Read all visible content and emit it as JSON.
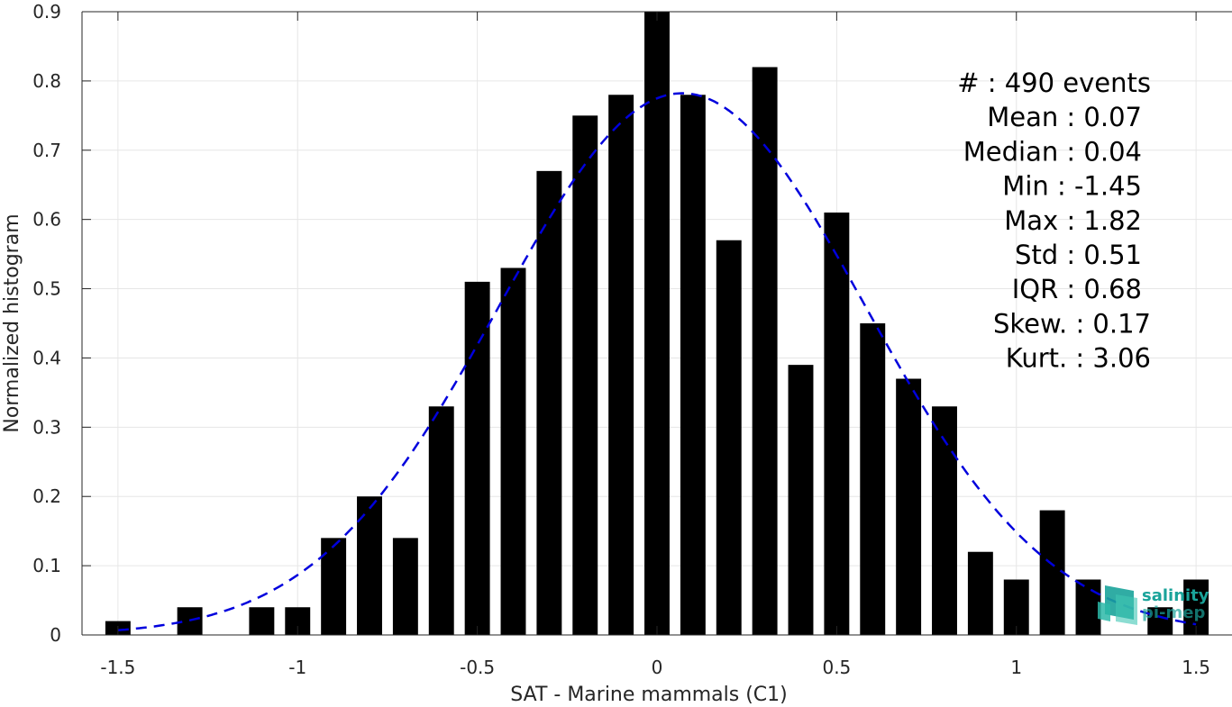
{
  "chart_data": {
    "type": "bar",
    "title": "",
    "xlabel": "SAT - Marine mammals (C1)",
    "ylabel": "Normalized histogram",
    "xlim": [
      -1.6,
      1.6
    ],
    "ylim": [
      0,
      0.9
    ],
    "xticks": [
      -1.5,
      -1,
      -0.5,
      0,
      0.5,
      1,
      1.5
    ],
    "xtick_labels": [
      "-1.5",
      "-1",
      "-0.5",
      "0",
      "0.5",
      "1",
      "1.5"
    ],
    "yticks": [
      0,
      0.1,
      0.2,
      0.3,
      0.4,
      0.5,
      0.6,
      0.7,
      0.8,
      0.9
    ],
    "ytick_labels": [
      "0",
      "0.1",
      "0.2",
      "0.3",
      "0.4",
      "0.5",
      "0.6",
      "0.7",
      "0.8",
      "0.9"
    ],
    "grid": true,
    "bar_color": "#000000",
    "bar_width": 0.07,
    "bars": {
      "x": [
        -1.5,
        -1.3,
        -1.1,
        -1.0,
        -0.9,
        -0.8,
        -0.7,
        -0.6,
        -0.5,
        -0.4,
        -0.3,
        -0.2,
        -0.1,
        0.0,
        0.1,
        0.2,
        0.3,
        0.4,
        0.5,
        0.6,
        0.7,
        0.8,
        0.9,
        1.0,
        1.1,
        1.2,
        1.4,
        1.5
      ],
      "values": [
        0.02,
        0.04,
        0.04,
        0.04,
        0.14,
        0.2,
        0.14,
        0.33,
        0.51,
        0.53,
        0.67,
        0.75,
        0.78,
        0.9,
        0.78,
        0.57,
        0.82,
        0.39,
        0.61,
        0.45,
        0.37,
        0.33,
        0.12,
        0.08,
        0.18,
        0.08,
        0.04,
        0.08
      ]
    },
    "fit": {
      "type": "normal",
      "mean": 0.07,
      "std": 0.51,
      "color": "#0000dd",
      "style": "dashed"
    },
    "stats_lines": [
      "#  : 490 events",
      "Mean : 0.07",
      "Median : 0.04",
      "Min : -1.45",
      "Max : 1.82",
      "Std : 0.51",
      "IQR : 0.68",
      "Skew. : 0.17",
      "Kurt. : 3.06"
    ]
  },
  "logo": {
    "line1": "salinity",
    "line2": "pi-mep",
    "color": "#1aa39a"
  }
}
